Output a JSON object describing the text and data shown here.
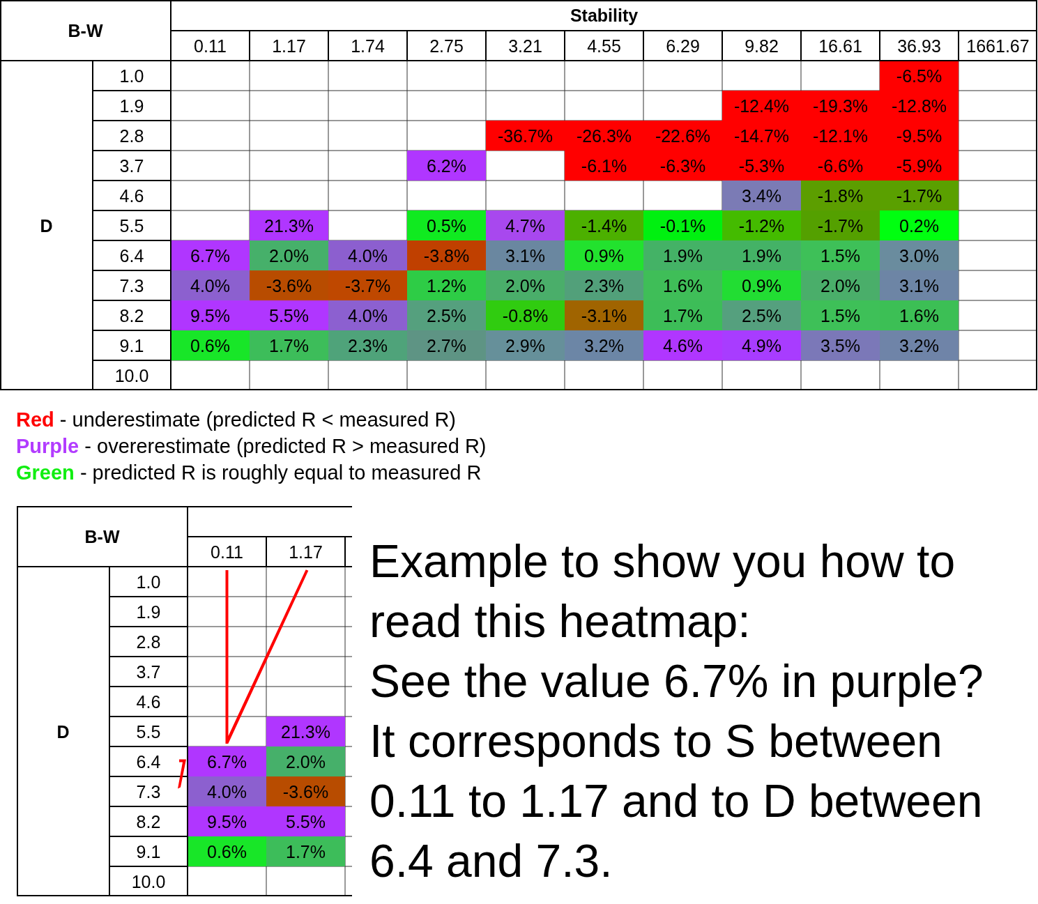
{
  "chart_data": [
    {
      "type": "heatmap",
      "title": "B-W",
      "xlabel": "Stability",
      "ylabel": "D",
      "categories": [
        "0.11",
        "1.17",
        "1.74",
        "2.75",
        "3.21",
        "4.55",
        "6.29",
        "9.82",
        "16.61",
        "36.93",
        "1661.67"
      ],
      "y_categories": [
        "1.0",
        "1.9",
        "2.8",
        "3.7",
        "4.6",
        "5.5",
        "6.4",
        "7.3",
        "8.2",
        "9.1",
        "10.0"
      ],
      "cells": [
        [
          null,
          null,
          null,
          null,
          null,
          null,
          null,
          null,
          null,
          -6.5,
          null
        ],
        [
          null,
          null,
          null,
          null,
          null,
          null,
          null,
          -12.4,
          -19.3,
          -12.8,
          null
        ],
        [
          null,
          null,
          null,
          null,
          -36.7,
          -26.3,
          -22.6,
          -14.7,
          -12.1,
          -9.5,
          null
        ],
        [
          null,
          null,
          null,
          6.2,
          null,
          -6.1,
          -6.3,
          -5.3,
          -6.6,
          -5.9,
          null
        ],
        [
          null,
          null,
          null,
          null,
          null,
          null,
          null,
          3.4,
          -1.8,
          -1.7,
          null
        ],
        [
          null,
          21.3,
          null,
          0.5,
          4.7,
          -1.4,
          -0.1,
          -1.2,
          -1.7,
          0.2,
          null
        ],
        [
          6.7,
          2.0,
          4.0,
          -3.8,
          3.1,
          0.9,
          1.9,
          1.9,
          1.5,
          3.0,
          null
        ],
        [
          4.0,
          -3.6,
          -3.7,
          1.2,
          2.0,
          2.3,
          1.6,
          0.9,
          2.0,
          3.1,
          null
        ],
        [
          9.5,
          5.5,
          4.0,
          2.5,
          -0.8,
          -3.1,
          1.7,
          2.5,
          1.5,
          1.6,
          null
        ],
        [
          0.6,
          1.7,
          2.3,
          2.7,
          2.9,
          3.2,
          4.6,
          4.9,
          3.5,
          3.2,
          null
        ],
        [
          null,
          null,
          null,
          null,
          null,
          null,
          null,
          null,
          null,
          null,
          null
        ]
      ],
      "cell_labels": [
        [
          null,
          null,
          null,
          null,
          null,
          null,
          null,
          null,
          null,
          "-6.5%",
          null
        ],
        [
          null,
          null,
          null,
          null,
          null,
          null,
          null,
          "-12.4%",
          "-19.3%",
          "-12.8%",
          null
        ],
        [
          null,
          null,
          null,
          null,
          "-36.7%",
          "-26.3%",
          "-22.6%",
          "-14.7%",
          "-12.1%",
          "-9.5%",
          null
        ],
        [
          null,
          null,
          null,
          "6.2%",
          null,
          "-6.1%",
          "-6.3%",
          "-5.3%",
          "-6.6%",
          "-5.9%",
          null
        ],
        [
          null,
          null,
          null,
          null,
          null,
          null,
          null,
          "3.4%",
          "-1.8%",
          "-1.7%",
          null
        ],
        [
          null,
          "21.3%",
          null,
          "0.5%",
          "4.7%",
          "-1.4%",
          "-0.1%",
          "-1.2%",
          "-1.7%",
          "0.2%",
          null
        ],
        [
          "6.7%",
          "2.0%",
          "4.0%",
          "-3.8%",
          "3.1%",
          "0.9%",
          "1.9%",
          "1.9%",
          "1.5%",
          "3.0%",
          null
        ],
        [
          "4.0%",
          "-3.6%",
          "-3.7%",
          "1.2%",
          "2.0%",
          "2.3%",
          "1.6%",
          "0.9%",
          "2.0%",
          "3.1%",
          null
        ],
        [
          "9.5%",
          "5.5%",
          "4.0%",
          "2.5%",
          "-0.8%",
          "-3.1%",
          "1.7%",
          "2.5%",
          "1.5%",
          "1.6%",
          null
        ],
        [
          "0.6%",
          "1.7%",
          "2.3%",
          "2.7%",
          "2.9%",
          "3.2%",
          "4.6%",
          "4.9%",
          "3.5%",
          "3.2%",
          null
        ],
        [
          null,
          null,
          null,
          null,
          null,
          null,
          null,
          null,
          null,
          null,
          null
        ]
      ],
      "colors": [
        [
          null,
          null,
          null,
          null,
          null,
          null,
          null,
          null,
          null,
          "#ff0000",
          null
        ],
        [
          null,
          null,
          null,
          null,
          null,
          null,
          null,
          "#ff0000",
          "#ff0000",
          "#ff0000",
          null
        ],
        [
          null,
          null,
          null,
          null,
          "#ff0000",
          "#ff0000",
          "#ff0000",
          "#ff0000",
          "#ff0000",
          "#ff0000",
          null
        ],
        [
          null,
          null,
          null,
          "#b036ff",
          null,
          "#ff0000",
          "#ff0000",
          "#ff0000",
          "#ff0000",
          "#ff0000",
          null
        ],
        [
          null,
          null,
          null,
          null,
          null,
          null,
          null,
          "#7b7bb5",
          "#5c9e00",
          "#5aa000",
          null
        ],
        [
          null,
          "#b036ff",
          null,
          "#10ea20",
          "#a848ee",
          "#4cb000",
          "#00f010",
          "#44bb00",
          "#54a000",
          "#00ff10",
          null
        ],
        [
          "#b036ff",
          "#46b06a",
          "#8c5fcf",
          "#c04000",
          "#6a87a0",
          "#22e22e",
          "#44b266",
          "#44b266",
          "#3ec058",
          "#6a8c9e",
          null
        ],
        [
          "#8c60cf",
          "#b84c00",
          "#bf4800",
          "#2ecc46",
          "#4aae6a",
          "#52a07a",
          "#3fbe58",
          "#22dd33",
          "#4aae6a",
          "#6d85a5",
          null
        ],
        [
          "#b036ff",
          "#b036ff",
          "#8c60d0",
          "#55a07e",
          "#30cc10",
          "#a06400",
          "#3dbd58",
          "#55a07e",
          "#3ec058",
          "#3cbf55",
          null
        ],
        [
          "#18e628",
          "#3dbd5a",
          "#4fa37a",
          "#5e9484",
          "#66909a",
          "#6c86a6",
          "#b036ff",
          "#a83cff",
          "#7b78b8",
          "#6f84a8",
          null
        ],
        [
          null,
          null,
          null,
          null,
          null,
          null,
          null,
          null,
          null,
          null,
          null
        ]
      ],
      "annotations": [
        "Red - underestimate (predicted R < measured R)",
        "Purple - overerestimate (predicted R > measured R)",
        "Green - predicted R is roughly equal to measured R"
      ]
    },
    {
      "type": "heatmap",
      "title": "B-W",
      "ylabel": "D",
      "categories": [
        "0.11",
        "1.17"
      ],
      "y_categories": [
        "1.0",
        "1.9",
        "2.8",
        "3.7",
        "4.6",
        "5.5",
        "6.4",
        "7.3",
        "8.2",
        "9.1",
        "10.0"
      ],
      "cells": [
        [
          null,
          null
        ],
        [
          null,
          null
        ],
        [
          null,
          null
        ],
        [
          null,
          null
        ],
        [
          null,
          null
        ],
        [
          null,
          21.3
        ],
        [
          6.7,
          2.0
        ],
        [
          4.0,
          -3.6
        ],
        [
          9.5,
          5.5
        ],
        [
          0.6,
          1.7
        ],
        [
          null,
          null
        ]
      ],
      "cell_labels": [
        [
          null,
          null
        ],
        [
          null,
          null
        ],
        [
          null,
          null
        ],
        [
          null,
          null
        ],
        [
          null,
          null
        ],
        [
          null,
          "21.3%"
        ],
        [
          "6.7%",
          "2.0%"
        ],
        [
          "4.0%",
          "-3.6%"
        ],
        [
          "9.5%",
          "5.5%"
        ],
        [
          "0.6%",
          "1.7%"
        ],
        [
          null,
          null
        ]
      ],
      "colors": [
        [
          null,
          null
        ],
        [
          null,
          null
        ],
        [
          null,
          null
        ],
        [
          null,
          null
        ],
        [
          null,
          null
        ],
        [
          null,
          "#b036ff"
        ],
        [
          "#b036ff",
          "#46b06a"
        ],
        [
          "#8c60cf",
          "#b84c00"
        ],
        [
          "#b036ff",
          "#b036ff"
        ],
        [
          "#18e628",
          "#3dbd5a"
        ],
        [
          null,
          null
        ]
      ],
      "annotations": [
        "Example to show you how to read this heatmap:",
        "See the value 6.7% in purple?",
        "It corresponds to S between 0.11 to 1.17 and to D between 6.4 and 7.3."
      ]
    }
  ]
}
